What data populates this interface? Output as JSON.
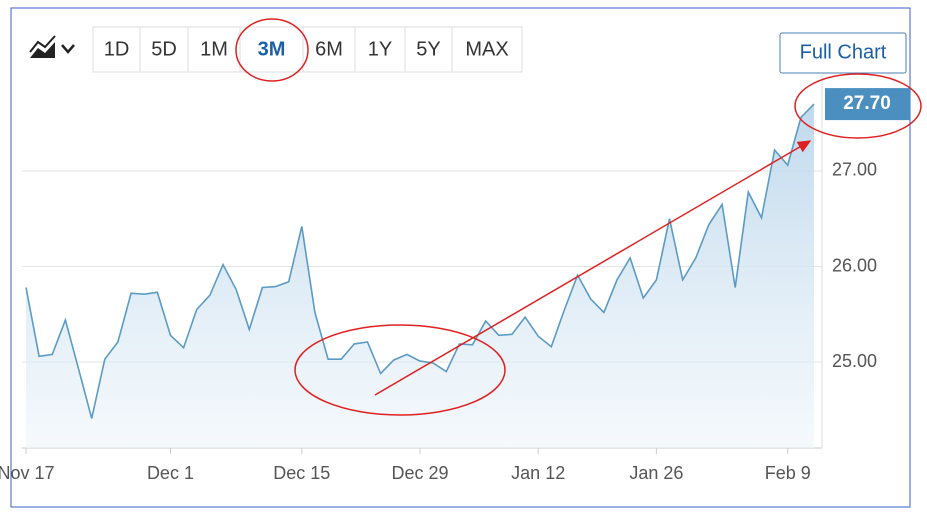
{
  "range_buttons": [
    "1D",
    "5D",
    "1M",
    "3M",
    "6M",
    "1Y",
    "5Y",
    "MAX"
  ],
  "selected_range": 3,
  "full_chart_label": "Full Chart",
  "chart_data": {
    "type": "line",
    "color": "#5b9bc4",
    "categories": [
      "Nov 17",
      null,
      null,
      null,
      null,
      null,
      null,
      null,
      null,
      null,
      null,
      "Dec 1",
      null,
      null,
      null,
      null,
      null,
      null,
      null,
      null,
      null,
      "Dec 15",
      null,
      null,
      null,
      null,
      null,
      null,
      null,
      null,
      "Dec 29",
      null,
      null,
      null,
      null,
      null,
      null,
      null,
      null,
      "Jan 12",
      null,
      null,
      null,
      null,
      null,
      null,
      null,
      null,
      "Jan 26",
      null,
      null,
      null,
      null,
      null,
      null,
      null,
      null,
      null,
      "Feb 9",
      null,
      null
    ],
    "values": [
      25.78,
      25.06,
      25.08,
      25.44,
      24.93,
      24.41,
      25.03,
      25.21,
      25.72,
      25.71,
      25.73,
      25.28,
      25.15,
      25.55,
      25.7,
      26.02,
      25.76,
      25.34,
      25.78,
      25.79,
      25.84,
      26.42,
      25.52,
      25.03,
      25.03,
      25.19,
      25.21,
      24.88,
      25.02,
      25.08,
      25.01,
      24.99,
      24.9,
      25.19,
      25.18,
      25.43,
      25.28,
      25.29,
      25.47,
      25.27,
      25.16,
      25.55,
      25.91,
      25.66,
      25.52,
      25.86,
      26.09,
      25.67,
      25.86,
      26.5,
      25.86,
      26.09,
      26.44,
      26.65,
      25.78,
      26.78,
      26.51,
      27.22,
      27.06,
      27.56,
      27.7
    ],
    "value_labels": [
      null,
      null,
      null,
      null,
      null,
      null,
      null,
      null,
      null,
      null,
      null,
      null,
      null,
      null,
      null,
      null,
      null,
      null,
      null,
      null,
      null,
      null,
      null,
      null,
      null,
      null,
      null,
      null,
      null,
      null,
      null,
      null,
      null,
      null,
      null,
      null,
      null,
      null,
      null,
      null,
      null,
      null,
      null,
      null,
      null,
      null,
      null,
      null,
      null,
      null,
      null,
      null,
      null,
      null,
      null,
      null,
      null,
      null,
      null,
      null,
      "27.70"
    ],
    "ylim": [
      24.1,
      27.9
    ],
    "yticks": [
      {
        "value": 25,
        "label": "25.00"
      },
      {
        "value": 26,
        "label": "26.00"
      },
      {
        "value": 27,
        "label": "27.00"
      }
    ],
    "grid": true
  }
}
